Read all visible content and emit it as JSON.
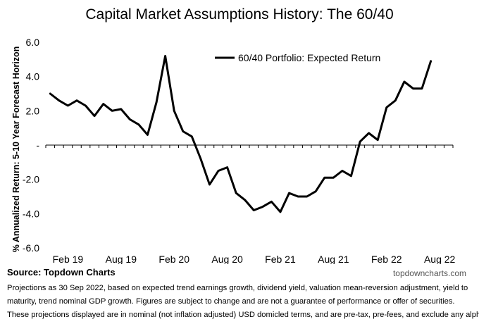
{
  "chart_data": {
    "type": "line",
    "title": "Capital Market Assumptions History: The 60/40",
    "ylabel": "% Annualized Return: 5-10 Year Forecast Horizon",
    "xlabel": "",
    "ylim": [
      -6,
      6
    ],
    "y_ticks": [
      6,
      4,
      2,
      0,
      -2,
      -4,
      -6
    ],
    "y_tick_labels": [
      "6.0",
      "4.0",
      "2.0",
      "-",
      "-2.0",
      "-4.0",
      "-6.0"
    ],
    "x_tick_labels": [
      "Feb 19",
      "Aug 19",
      "Feb 20",
      "Aug 20",
      "Feb 21",
      "Aug 21",
      "Feb 22",
      "Aug 22"
    ],
    "x_tick_positions": [
      2,
      8,
      14,
      20,
      26,
      32,
      38,
      44
    ],
    "legend": "top-center",
    "grid": false,
    "series": [
      {
        "name": "60/40 Portfolio: Expected Return",
        "color": "#000000",
        "x": [
          "Dec 18",
          "Jan 19",
          "Feb 19",
          "Mar 19",
          "Apr 19",
          "May 19",
          "Jun 19",
          "Jul 19",
          "Aug 19",
          "Sep 19",
          "Oct 19",
          "Nov 19",
          "Dec 19",
          "Jan 20",
          "Feb 20",
          "Mar 20",
          "Apr 20",
          "May 20",
          "Jun 20",
          "Jul 20",
          "Aug 20",
          "Sep 20",
          "Oct 20",
          "Nov 20",
          "Dec 20",
          "Jan 21",
          "Feb 21",
          "Mar 21",
          "Apr 21",
          "May 21",
          "Jun 21",
          "Jul 21",
          "Aug 21",
          "Sep 21",
          "Oct 21",
          "Nov 21",
          "Dec 21",
          "Jan 22",
          "Feb 22",
          "Mar 22",
          "Apr 22",
          "May 22",
          "Jun 22",
          "Jul 22",
          "Aug 22",
          "Sep 22"
        ],
        "values": [
          3.0,
          2.6,
          2.3,
          2.6,
          2.3,
          1.7,
          2.4,
          2.0,
          2.1,
          1.5,
          1.2,
          0.6,
          2.5,
          5.2,
          2.0,
          0.8,
          0.5,
          -0.8,
          -2.3,
          -1.5,
          -1.3,
          -2.8,
          -3.2,
          -3.8,
          -3.6,
          -3.3,
          -3.9,
          -2.8,
          -3.0,
          -3.0,
          -2.7,
          -1.9,
          -1.9,
          -1.5,
          -1.8,
          0.2,
          0.7,
          0.3,
          2.2,
          2.6,
          3.7,
          3.3,
          3.3,
          4.9,
          null,
          null
        ]
      }
    ]
  },
  "footer": {
    "source": "Source: Topdown Charts",
    "website": "topdowncharts.com",
    "notes": [
      "Projections as 30 Sep 2022, based on expected trend earnings growth, dividend yield, valuation mean-reversion adjustment, yield to",
      "maturity, trend nominal GDP growth.  Figures are subject to change and are not a guarantee of performance or offer of securities.",
      "These projections displayed are in nominal (not inflation adjusted) USD domicled terms, and are pre-tax, pre-fees, and exclude any alpha."
    ]
  }
}
